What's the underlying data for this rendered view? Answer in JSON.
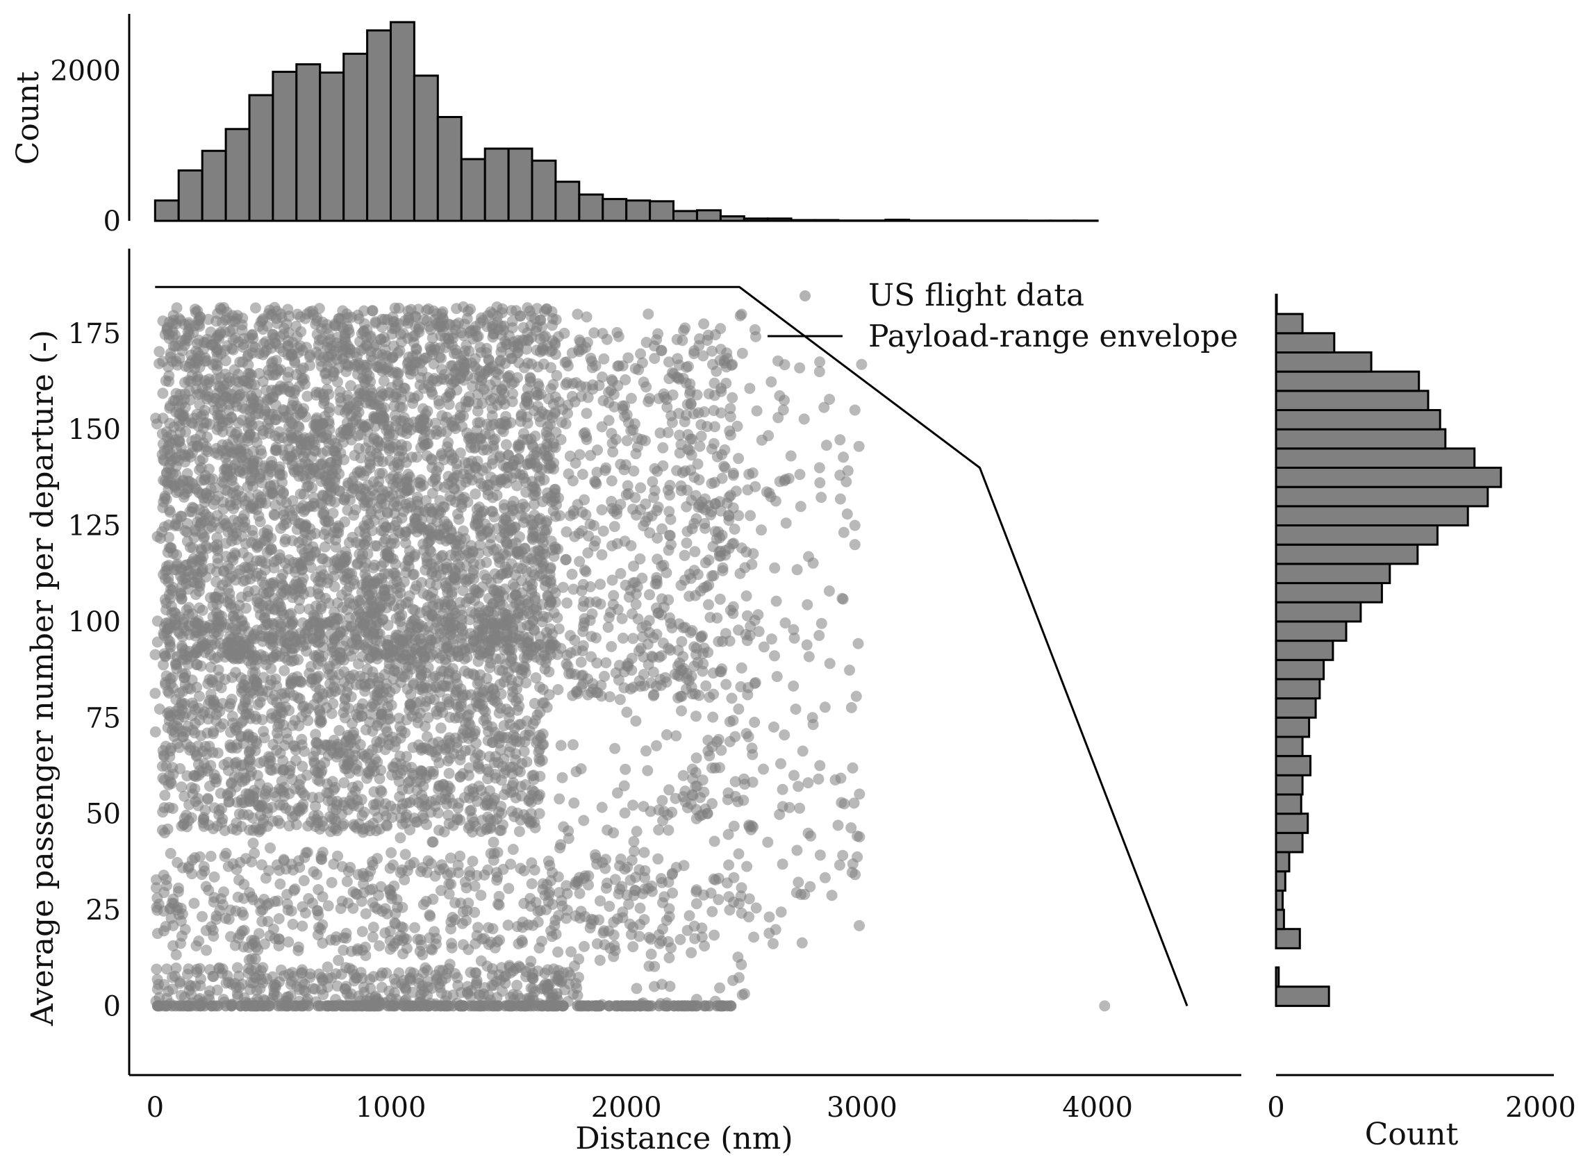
{
  "chart_data": [
    {
      "type": "scatter",
      "panel": "joint",
      "xlabel": "Distance (nm)",
      "ylabel": "Average passenger number per departure (-)",
      "xlim": [
        -110,
        4610
      ],
      "ylim": [
        -18,
        197
      ],
      "xticks": [
        0,
        1000,
        2000,
        3000,
        4000
      ],
      "yticks": [
        0,
        25,
        50,
        75,
        100,
        125,
        150,
        175
      ],
      "legend": {
        "placement": "top-right",
        "entries": [
          "US flight data",
          "Payload-range envelope"
        ]
      },
      "grid": false,
      "series": [
        {
          "name": "US flight data",
          "kind": "scatter",
          "color": "#808080",
          "opacity": 0.55,
          "approx_point_count": 20000,
          "density_regions": [
            {
              "x": [
                30,
                1700
              ],
              "y": [
                90,
                182
              ],
              "weight": 0.43
            },
            {
              "x": [
                30,
                1650
              ],
              "y": [
                45,
                100
              ],
              "weight": 0.2
            },
            {
              "x": [
                0,
                2550
              ],
              "y": [
                0,
                180
              ],
              "weight": 0.17
            },
            {
              "x": [
                1650,
                2450
              ],
              "y": [
                80,
                175
              ],
              "weight": 0.06
            },
            {
              "x": [
                0,
                2200
              ],
              "y": [
                14,
                40
              ],
              "weight": 0.05
            },
            {
              "x": [
                0,
                1800
              ],
              "y": [
                0,
                10
              ],
              "weight": 0.05
            },
            {
              "x": [
                2200,
                3000
              ],
              "y": [
                15,
                170
              ],
              "weight": 0.04
            }
          ],
          "zero_passenger_line": {
            "y": 0,
            "x": [
              0,
              2450
            ]
          },
          "outliers": [
            [
              4030,
              0
            ],
            [
              2970,
              155
            ],
            [
              2970,
              120
            ],
            [
              2970,
              125
            ],
            [
              2820,
              165
            ],
            [
              2820,
              140
            ],
            [
              2790,
              75
            ],
            [
              2780,
              31
            ]
          ]
        },
        {
          "name": "Payload-range envelope",
          "kind": "line",
          "color": "#000000",
          "x": [
            0,
            2480,
            3500,
            4380
          ],
          "y": [
            187,
            187,
            140,
            0
          ]
        }
      ]
    },
    {
      "type": "bar",
      "panel": "top-marginal",
      "orientation": "vertical",
      "ylabel": "Count",
      "yticks": [
        0,
        2000
      ],
      "ylim": [
        0,
        2750
      ],
      "bin_width": 100,
      "bin_start": 0,
      "values": [
        270,
        670,
        930,
        1220,
        1670,
        1980,
        2080,
        1970,
        2220,
        2530,
        2640,
        1930,
        1380,
        820,
        960,
        960,
        800,
        520,
        350,
        290,
        270,
        260,
        130,
        140,
        60,
        30,
        30,
        10,
        10,
        5,
        5,
        15,
        5,
        5,
        5,
        5,
        5,
        3,
        3,
        3
      ],
      "bar_color": "#808080",
      "edge_color": "#000000"
    },
    {
      "type": "bar",
      "panel": "right-marginal",
      "orientation": "horizontal",
      "xlabel": "Count",
      "xticks": [
        0,
        2000
      ],
      "xlim": [
        0,
        2100
      ],
      "bin_height": 5,
      "bin_start": 0,
      "values": [
        400,
        20,
        0,
        180,
        60,
        50,
        70,
        100,
        200,
        240,
        190,
        200,
        260,
        200,
        250,
        300,
        330,
        360,
        430,
        530,
        640,
        800,
        860,
        1070,
        1220,
        1450,
        1600,
        1700,
        1500,
        1280,
        1240,
        1150,
        1080,
        720,
        440,
        200,
        5
      ],
      "bar_color": "#808080",
      "edge_color": "#000000"
    }
  ]
}
